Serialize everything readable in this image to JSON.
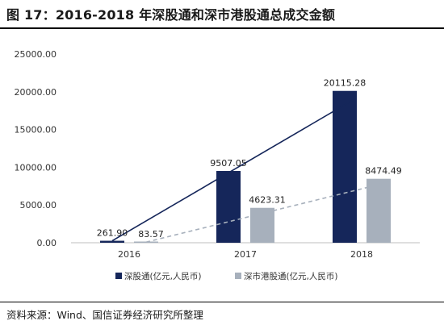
{
  "figure": {
    "title": "图 17：2016-2018 年深股通和深市港股通总成交金额",
    "source": "资料来源：Wind、国信证券经济研究所整理"
  },
  "chart_data": {
    "type": "bar",
    "categories": [
      "2016",
      "2017",
      "2018"
    ],
    "series": [
      {
        "name": "深股通(亿元,人民币)",
        "values": [
          261.9,
          9507.05,
          20115.28
        ],
        "color": "#15265a",
        "labels": [
          "261.90",
          "9507.05",
          "20115.28"
        ]
      },
      {
        "name": "深市港股通(亿元,人民币)",
        "values": [
          83.57,
          4623.31,
          8474.49
        ],
        "color": "#a7b0bc",
        "labels": [
          "83.57",
          "4623.31",
          "8474.49"
        ]
      }
    ],
    "yticks": [
      "0.00",
      "5000.00",
      "10000.00",
      "15000.00",
      "20000.00",
      "25000.00"
    ],
    "ylim": [
      0,
      25000
    ],
    "legend_position": "bottom",
    "trendlines": [
      {
        "series": 0,
        "style": "solid",
        "color": "#15265a"
      },
      {
        "series": 1,
        "style": "dashed",
        "color": "#a7b0bc"
      }
    ],
    "grid": false
  }
}
